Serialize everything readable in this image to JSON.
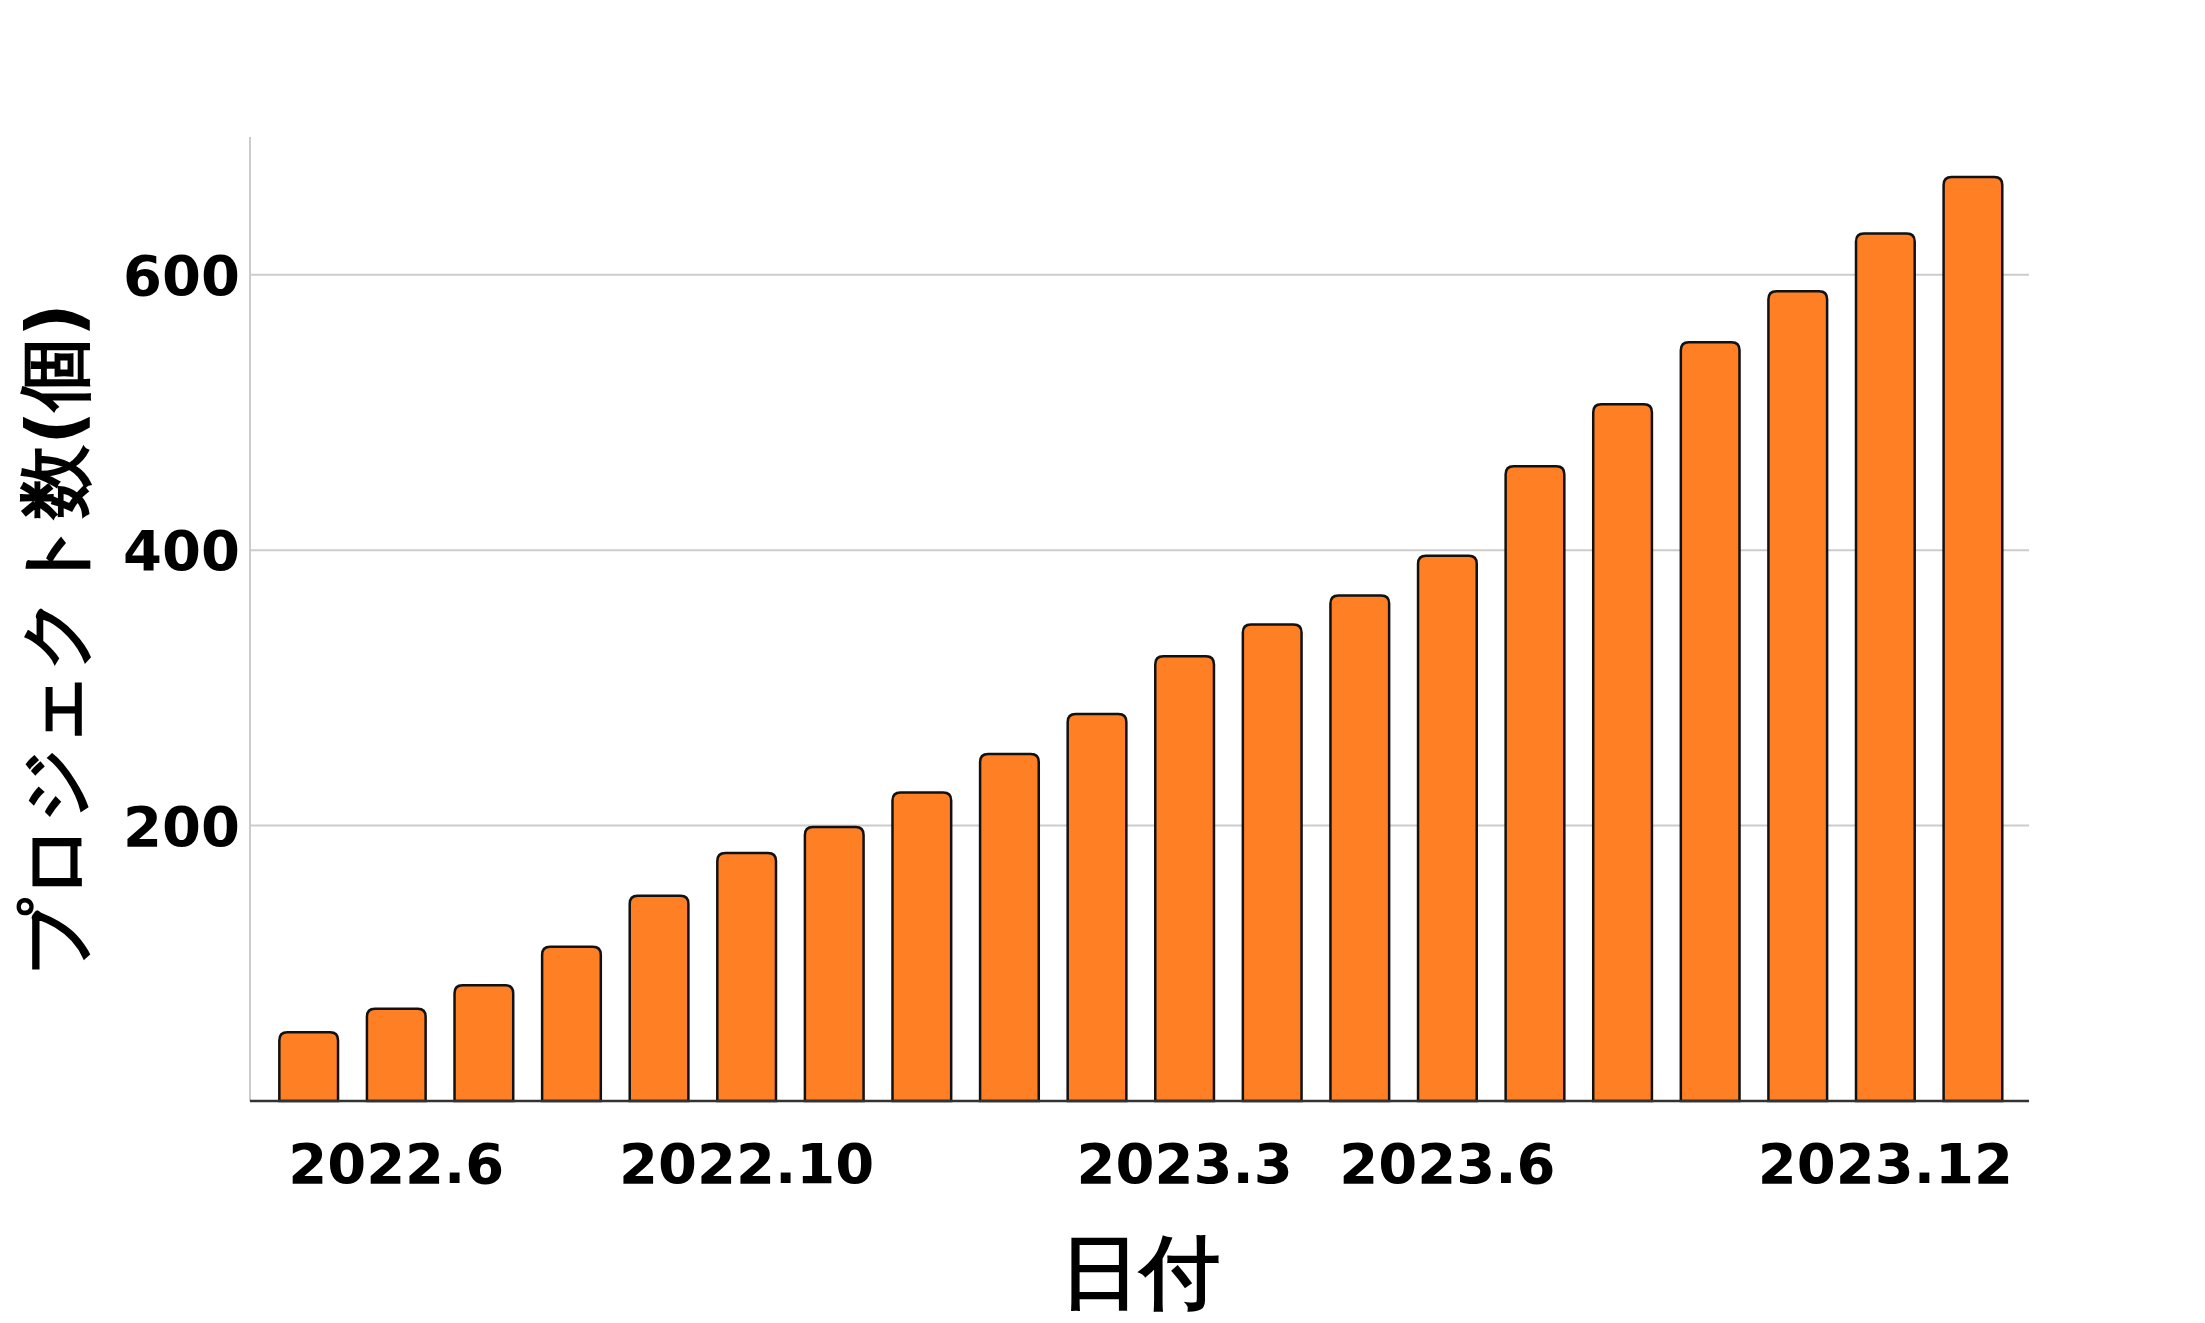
{
  "chart_data": {
    "type": "bar",
    "xlabel": "日付",
    "ylabel": "プロジェクト数(個)",
    "color": "#ff7f24",
    "categories": [
      null,
      "2022.6",
      null,
      null,
      null,
      "2022.10",
      null,
      null,
      null,
      null,
      "2023.3",
      null,
      null,
      "2023.6",
      null,
      null,
      null,
      null,
      "2023.12",
      null
    ],
    "values": [
      50,
      67,
      84,
      112,
      149,
      180,
      199,
      224,
      252,
      281,
      323,
      346,
      367,
      396,
      461,
      506,
      551,
      588,
      630,
      671
    ],
    "ylim": [
      0,
      700
    ],
    "yticks": [
      200,
      400,
      600
    ],
    "grid": "y"
  }
}
